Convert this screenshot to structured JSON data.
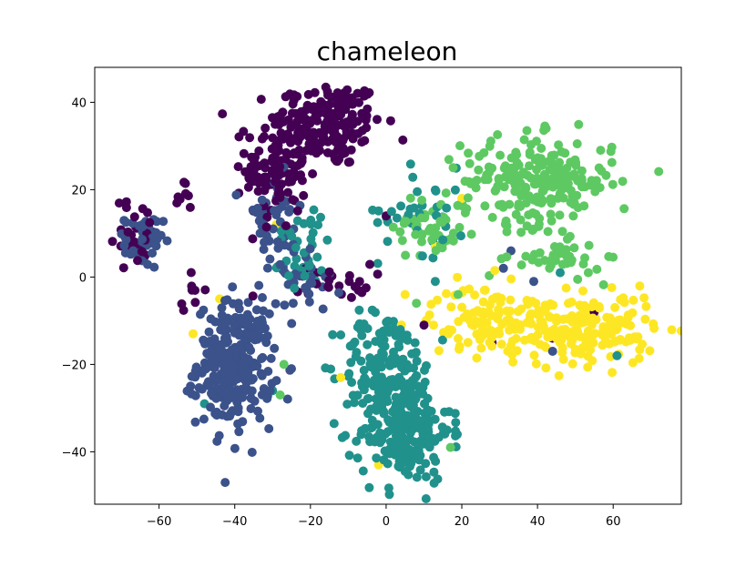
{
  "chart_data": {
    "type": "scatter",
    "title": "chameleon",
    "xlabel": "",
    "ylabel": "",
    "xlim": [
      -77,
      78
    ],
    "ylim": [
      -52,
      48
    ],
    "grid": false,
    "legend": "none",
    "x_ticks": [
      -60,
      -40,
      -20,
      0,
      20,
      40,
      60
    ],
    "y_ticks": [
      -40,
      -20,
      0,
      20,
      40
    ],
    "x_tick_labels": [
      "−60",
      "−40",
      "−20",
      "0",
      "20",
      "40",
      "60"
    ],
    "y_tick_labels": [
      "−40",
      "−20",
      "0",
      "20",
      "40"
    ],
    "marker_radius_note": "filled circles",
    "palette": [
      "#440154",
      "#3b528b",
      "#21918c",
      "#5ec962",
      "#fde725"
    ],
    "clusters": [
      {
        "color": "#440154",
        "cx": -15,
        "cy": 35,
        "sx": 7,
        "sy": 5,
        "n": 170
      },
      {
        "color": "#440154",
        "cx": -29,
        "cy": 25,
        "sx": 4,
        "sy": 7,
        "n": 120
      },
      {
        "color": "#440154",
        "cx": -53,
        "cy": 18,
        "sx": 2,
        "sy": 2,
        "n": 8
      },
      {
        "color": "#440154",
        "cx": -52,
        "cy": -3,
        "sx": 2,
        "sy": 2,
        "n": 8
      },
      {
        "color": "#440154",
        "cx": -66,
        "cy": 10,
        "sx": 3,
        "sy": 4,
        "n": 30
      },
      {
        "color": "#440154",
        "cx": -14,
        "cy": -1,
        "sx": 5,
        "sy": 2,
        "n": 25
      },
      {
        "color": "#3b528b",
        "cx": -40,
        "cy": -20,
        "sx": 5,
        "sy": 7,
        "n": 280
      },
      {
        "color": "#3b528b",
        "cx": -64,
        "cy": 8,
        "sx": 2.5,
        "sy": 3,
        "n": 45
      },
      {
        "color": "#3b528b",
        "cx": -30,
        "cy": 12,
        "sx": 4,
        "sy": 6,
        "n": 45
      },
      {
        "color": "#3b528b",
        "cx": -22,
        "cy": 0,
        "sx": 5,
        "sy": 4,
        "n": 35
      },
      {
        "color": "#21918c",
        "cx": 5,
        "cy": -35,
        "sx": 6,
        "sy": 6,
        "n": 220
      },
      {
        "color": "#21918c",
        "cx": 0,
        "cy": -20,
        "sx": 6,
        "sy": 6,
        "n": 130
      },
      {
        "color": "#21918c",
        "cx": -22,
        "cy": 7,
        "sx": 4,
        "sy": 5,
        "n": 35
      },
      {
        "color": "#21918c",
        "cx": 10,
        "cy": 15,
        "sx": 6,
        "sy": 5,
        "n": 35
      },
      {
        "color": "#5ec962",
        "cx": 40,
        "cy": 22,
        "sx": 10,
        "sy": 5,
        "n": 230
      },
      {
        "color": "#5ec962",
        "cx": 12,
        "cy": 12,
        "sx": 5,
        "sy": 4,
        "n": 50
      },
      {
        "color": "#5ec962",
        "cx": 45,
        "cy": 4,
        "sx": 6,
        "sy": 2,
        "n": 40
      },
      {
        "color": "#fde725",
        "cx": 55,
        "cy": -12,
        "sx": 8,
        "sy": 4,
        "n": 160
      },
      {
        "color": "#fde725",
        "cx": 28,
        "cy": -10,
        "sx": 8,
        "sy": 4,
        "n": 130
      }
    ],
    "scatter_points": [
      {
        "color": "#440154",
        "x": 10,
        "y": -11
      },
      {
        "color": "#440154",
        "x": 28,
        "y": -15
      },
      {
        "color": "#440154",
        "x": 44,
        "y": -14
      },
      {
        "color": "#440154",
        "x": 55,
        "y": -8
      },
      {
        "color": "#440154",
        "x": 0,
        "y": 14
      },
      {
        "color": "#440154",
        "x": -7,
        "y": -1
      },
      {
        "color": "#3b528b",
        "x": 39,
        "y": -1
      },
      {
        "color": "#3b528b",
        "x": 44,
        "y": -17
      },
      {
        "color": "#3b528b",
        "x": 31,
        "y": 2
      },
      {
        "color": "#3b528b",
        "x": 33,
        "y": 6
      },
      {
        "color": "#21918c",
        "x": 46,
        "y": 1
      },
      {
        "color": "#21918c",
        "x": 61,
        "y": -18
      },
      {
        "color": "#21918c",
        "x": 13,
        "y": -1
      },
      {
        "color": "#21918c",
        "x": -30,
        "y": -26
      },
      {
        "color": "#21918c",
        "x": -48,
        "y": -29
      },
      {
        "color": "#5ec962",
        "x": -28,
        "y": -27
      },
      {
        "color": "#5ec962",
        "x": -27,
        "y": -20
      },
      {
        "color": "#5ec962",
        "x": -41,
        "y": -21
      },
      {
        "color": "#5ec962",
        "x": 17,
        "y": -39
      },
      {
        "color": "#5ec962",
        "x": 19,
        "y": -4
      },
      {
        "color": "#5ec962",
        "x": 8,
        "y": -6
      },
      {
        "color": "#fde725",
        "x": -12,
        "y": -23
      },
      {
        "color": "#fde725",
        "x": -44,
        "y": -5
      },
      {
        "color": "#fde725",
        "x": -51,
        "y": -13
      },
      {
        "color": "#fde725",
        "x": 20,
        "y": 18
      },
      {
        "color": "#fde725",
        "x": 13,
        "y": 7
      },
      {
        "color": "#fde725",
        "x": -2,
        "y": -43
      },
      {
        "color": "#fde725",
        "x": 5,
        "y": -4
      },
      {
        "color": "#fde725",
        "x": -29,
        "y": 12
      }
    ]
  }
}
